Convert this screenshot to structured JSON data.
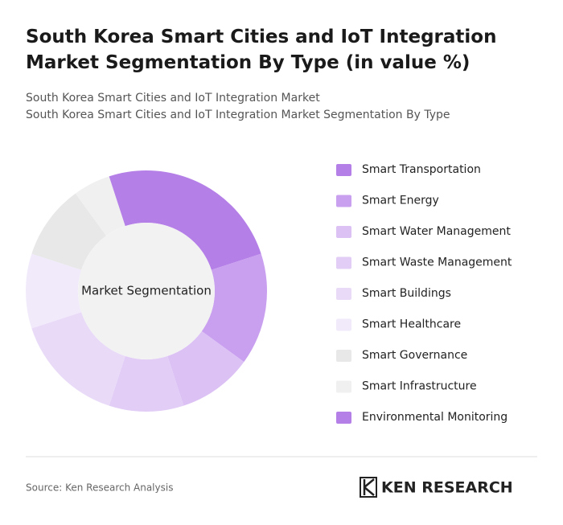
{
  "chart_data": {
    "type": "donut",
    "title": "South Korea Smart Cities and IoT Integration Market Segmentation By Type (in value %)",
    "subtitle": [
      "South Korea Smart Cities and IoT Integration Market",
      "South Korea Smart Cities and IoT Integration Market Segmentation By Type"
    ],
    "center_label": "Market Segmentation",
    "categories": [
      "Smart Transportation",
      "Smart Energy",
      "Smart Water Management",
      "Smart Waste Management",
      "Smart Buildings",
      "Smart Healthcare",
      "Smart Governance",
      "Smart Infrastructure",
      "Environmental Monitoring"
    ],
    "values": [
      20,
      15,
      10,
      10,
      15,
      10,
      10,
      5,
      5
    ],
    "colors": [
      "#b57fe8",
      "#c9a0ef",
      "#dcc1f5",
      "#e2cdf6",
      "#e9dbf8",
      "#f1eafb",
      "#e8e8e8",
      "#f0f0f0",
      "#b57fe8"
    ],
    "legend": "right"
  },
  "footer": {
    "source": "Source: Ken Research Analysis",
    "logo": "KEN RESEARCH"
  }
}
